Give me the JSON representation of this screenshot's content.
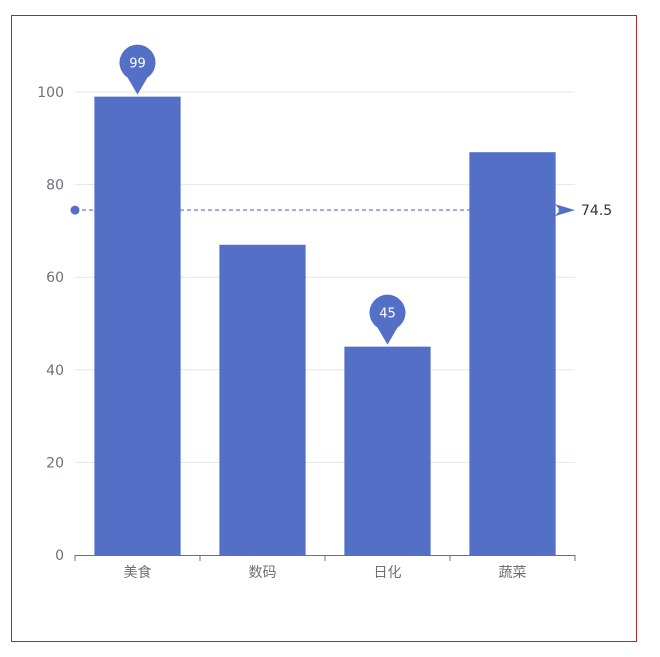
{
  "chart_data": {
    "type": "bar",
    "categories": [
      "美食",
      "数码",
      "日化",
      "蔬菜"
    ],
    "values": [
      99,
      67,
      45,
      87
    ],
    "ylim": [
      0,
      100
    ],
    "yticks": [
      0,
      20,
      40,
      60,
      80,
      100
    ],
    "grid": true,
    "mark_points": [
      {
        "category": "美食",
        "value": 99,
        "label": "99"
      },
      {
        "category": "日化",
        "value": 45,
        "label": "45"
      }
    ],
    "mark_line": {
      "value": 74.5,
      "label": "74.5"
    }
  },
  "colors": {
    "bar": "#5470c6",
    "grid": "#e0e6f1",
    "axis": "#6e7079",
    "frame": "#b3262b",
    "mark_line": "#5470c6"
  }
}
